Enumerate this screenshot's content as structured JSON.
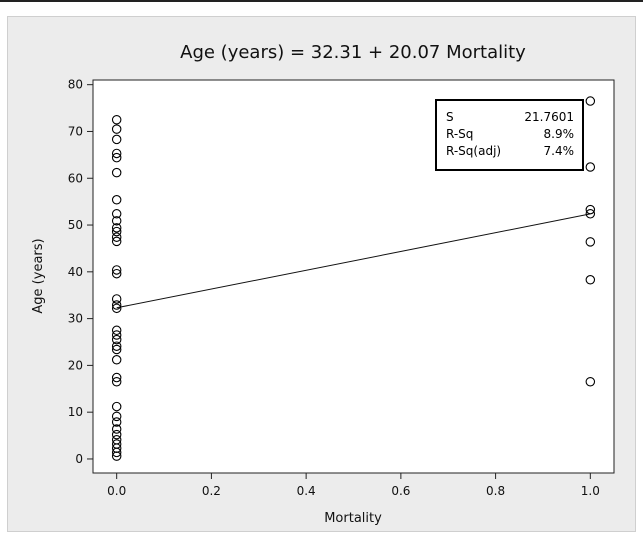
{
  "chart_data": {
    "type": "scatter",
    "title": "Age (years) = 32.31 + 20.07 Mortality",
    "xlabel": "Mortality",
    "ylabel": "Age (years)",
    "xlim": [
      -0.05,
      1.05
    ],
    "ylim": [
      -3,
      81
    ],
    "x_ticks": [
      "0.0",
      "0.2",
      "0.4",
      "0.6",
      "0.8",
      "1.0"
    ],
    "x_tick_values": [
      0,
      0.2,
      0.4,
      0.6,
      0.8,
      1.0
    ],
    "y_ticks": [
      "0",
      "10",
      "20",
      "30",
      "40",
      "50",
      "60",
      "70",
      "80"
    ],
    "y_tick_values": [
      0,
      10,
      20,
      30,
      40,
      50,
      60,
      70,
      80
    ],
    "grid": false,
    "fit_line": {
      "intercept": 32.31,
      "slope": 20.07
    },
    "stats": [
      {
        "label": "S",
        "value": "21.7601"
      },
      {
        "label": "R-Sq",
        "value": "8.9%"
      },
      {
        "label": "R-Sq(adj)",
        "value": "7.4%"
      }
    ],
    "stats_position": "top-right",
    "points": [
      {
        "x": 0,
        "y": 72.5
      },
      {
        "x": 0,
        "y": 70.5
      },
      {
        "x": 0,
        "y": 68.3
      },
      {
        "x": 0,
        "y": 65.3
      },
      {
        "x": 0,
        "y": 64.4
      },
      {
        "x": 0,
        "y": 61.2
      },
      {
        "x": 0,
        "y": 55.4
      },
      {
        "x": 0,
        "y": 52.4
      },
      {
        "x": 0,
        "y": 50.9
      },
      {
        "x": 0,
        "y": 49.4
      },
      {
        "x": 0,
        "y": 48.6
      },
      {
        "x": 0,
        "y": 47.4
      },
      {
        "x": 0,
        "y": 46.5
      },
      {
        "x": 0,
        "y": 40.4
      },
      {
        "x": 0,
        "y": 39.6
      },
      {
        "x": 0,
        "y": 34.2
      },
      {
        "x": 0,
        "y": 32.9
      },
      {
        "x": 0,
        "y": 32.2
      },
      {
        "x": 0,
        "y": 27.5
      },
      {
        "x": 0,
        "y": 26.5
      },
      {
        "x": 0,
        "y": 25.5
      },
      {
        "x": 0,
        "y": 24.1
      },
      {
        "x": 0,
        "y": 23.4
      },
      {
        "x": 0,
        "y": 21.2
      },
      {
        "x": 0,
        "y": 17.4
      },
      {
        "x": 0,
        "y": 16.5
      },
      {
        "x": 0,
        "y": 11.2
      },
      {
        "x": 0,
        "y": 9.1
      },
      {
        "x": 0,
        "y": 7.9
      },
      {
        "x": 0,
        "y": 6.4
      },
      {
        "x": 0,
        "y": 5.2
      },
      {
        "x": 0,
        "y": 4.1
      },
      {
        "x": 0,
        "y": 3.2
      },
      {
        "x": 0,
        "y": 2.3
      },
      {
        "x": 0,
        "y": 1.4
      },
      {
        "x": 0,
        "y": 0.6
      },
      {
        "x": 1,
        "y": 76.5
      },
      {
        "x": 1,
        "y": 62.4
      },
      {
        "x": 1,
        "y": 53.3
      },
      {
        "x": 1,
        "y": 52.4
      },
      {
        "x": 1,
        "y": 46.4
      },
      {
        "x": 1,
        "y": 38.3
      },
      {
        "x": 1,
        "y": 16.5
      }
    ]
  }
}
